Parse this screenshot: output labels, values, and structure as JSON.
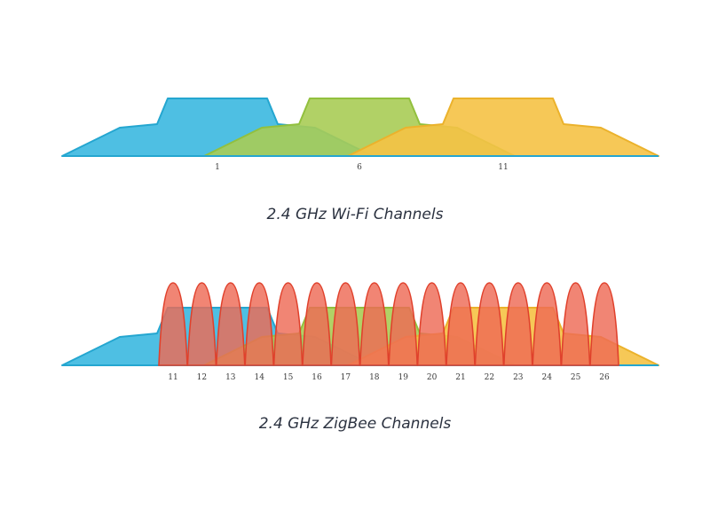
{
  "wifi": {
    "caption": "2.4 GHz Wi-Fi Channels",
    "channel_labels": [
      "1",
      "6",
      "11"
    ],
    "colors": [
      "#3bb8e0",
      "#a8cc55",
      "#f5c245"
    ],
    "outline_colors": [
      "#24a6d0",
      "#92c03e",
      "#ebb22c"
    ]
  },
  "zigbee": {
    "caption": "2.4 GHz ZigBee Channels",
    "channel_labels": [
      "11",
      "12",
      "13",
      "14",
      "15",
      "16",
      "17",
      "18",
      "19",
      "20",
      "21",
      "22",
      "23",
      "24",
      "25",
      "26"
    ],
    "peak_color": "#ee6a55",
    "peak_outline": "#e0412c"
  },
  "axis_color": "#24a6d0"
}
